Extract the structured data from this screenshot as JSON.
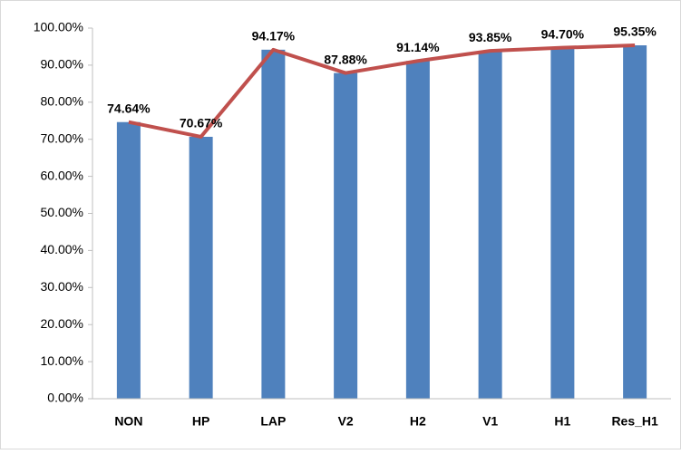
{
  "chart_data": {
    "type": "bar_line",
    "categories": [
      "NON",
      "HP",
      "LAP",
      "V2",
      "H2",
      "V1",
      "H1",
      "Res_H1"
    ],
    "series": [
      {
        "type": "bar",
        "color": "#4f81bd",
        "values": [
          74.64,
          70.67,
          94.17,
          87.88,
          91.14,
          93.85,
          94.7,
          95.35
        ]
      },
      {
        "type": "line",
        "color": "#c0504d",
        "values": [
          74.64,
          70.67,
          94.17,
          87.88,
          91.14,
          93.85,
          94.7,
          95.35
        ],
        "value_labels": [
          "74.64%",
          "70.67%",
          "94.17%",
          "87.88%",
          "91.14%",
          "93.85%",
          "94.70%",
          "95.35%"
        ]
      }
    ],
    "ylim": [
      0,
      100
    ],
    "yticks": [
      {
        "value": 0,
        "label": "0.00%"
      },
      {
        "value": 10,
        "label": "10.00%"
      },
      {
        "value": 20,
        "label": "20.00%"
      },
      {
        "value": 30,
        "label": "30.00%"
      },
      {
        "value": 40,
        "label": "40.00%"
      },
      {
        "value": 50,
        "label": "50.00%"
      },
      {
        "value": 60,
        "label": "60.00%"
      },
      {
        "value": 70,
        "label": "70.00%"
      },
      {
        "value": 80,
        "label": "80.00%"
      },
      {
        "value": 90,
        "label": "90.00%"
      },
      {
        "value": 100,
        "label": "100.00%"
      }
    ],
    "grid": false
  }
}
